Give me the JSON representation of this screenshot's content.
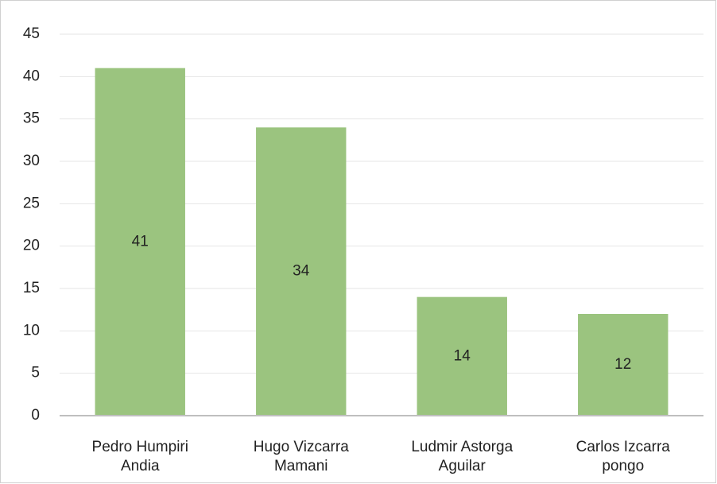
{
  "chart_data": {
    "type": "bar",
    "categories": [
      "Pedro Humpiri Andia",
      "Hugo Vizcarra Mamani",
      "Ludmir Astorga Aguilar",
      "Carlos Izcarra pongo"
    ],
    "values": [
      41,
      34,
      14,
      12
    ],
    "color": "#9bc47f",
    "ylim": [
      0,
      45
    ],
    "yticks": [
      0,
      5,
      10,
      15,
      20,
      25,
      30,
      35,
      40,
      45
    ],
    "grid": true,
    "data_labels": true
  }
}
